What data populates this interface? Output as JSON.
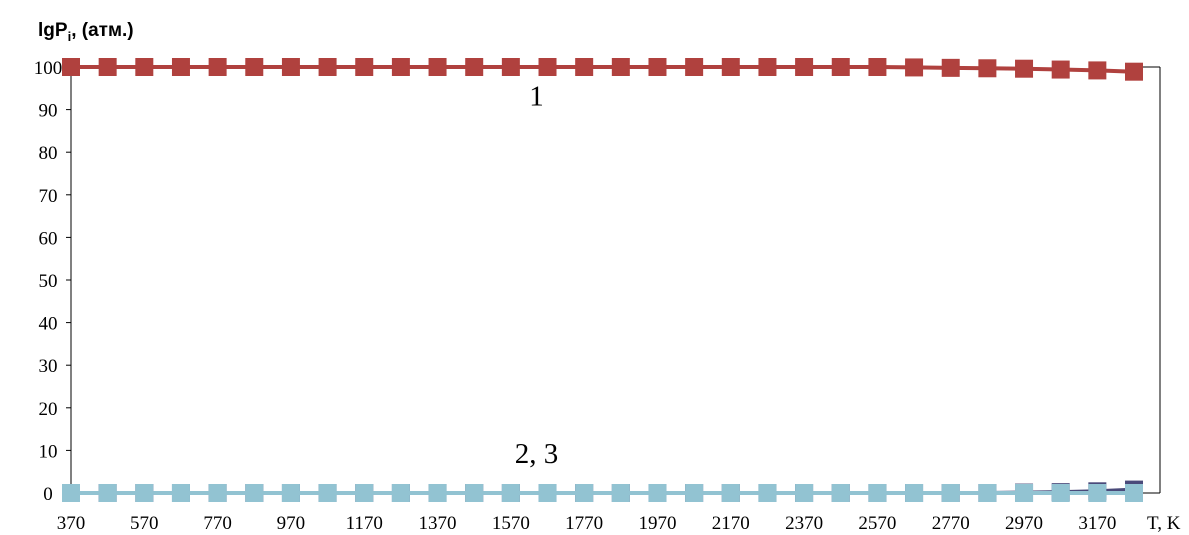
{
  "chart_data": {
    "type": "line",
    "ylabel_main": "lgP",
    "ylabel_sub": "i",
    "ylabel_rest": ", (атм.)",
    "xlabel": "T, K",
    "x_tick_labels": [
      "370",
      "570",
      "770",
      "970",
      "1170",
      "1370",
      "1570",
      "1770",
      "1970",
      "2170",
      "2370",
      "2570",
      "2770",
      "2970",
      "3170"
    ],
    "y_ticks": [
      0,
      10,
      20,
      30,
      40,
      50,
      60,
      70,
      80,
      90,
      100
    ],
    "ylim": [
      0,
      100
    ],
    "x": [
      370,
      470,
      570,
      670,
      770,
      870,
      970,
      1070,
      1170,
      1270,
      1370,
      1470,
      1570,
      1670,
      1770,
      1870,
      1970,
      2070,
      2170,
      2270,
      2370,
      2470,
      2570,
      2670,
      2770,
      2870,
      2970,
      3070,
      3170,
      3270
    ],
    "series": [
      {
        "id": "1",
        "color": "#b0413e",
        "values": [
          100,
          100,
          100,
          100,
          100,
          100,
          100,
          100,
          100,
          100,
          100,
          100,
          100,
          100,
          100,
          100,
          100,
          100,
          100,
          100,
          100,
          100,
          100,
          99.9,
          99.8,
          99.7,
          99.6,
          99.4,
          99.2,
          98.9
        ]
      },
      {
        "id": "2",
        "color": "#4a4a7a",
        "values": [
          0,
          0,
          0,
          0,
          0,
          0,
          0,
          0,
          0,
          0,
          0,
          0,
          0,
          0,
          0,
          0,
          0,
          0,
          0,
          0,
          0,
          0,
          0,
          0,
          0,
          0,
          0.1,
          0.2,
          0.4,
          0.8
        ]
      },
      {
        "id": "3",
        "color": "#92c3d2",
        "values": [
          0,
          0,
          0,
          0,
          0,
          0,
          0,
          0,
          0,
          0,
          0,
          0,
          0,
          0,
          0,
          0,
          0,
          0,
          0,
          0,
          0,
          0,
          0,
          0,
          0,
          0,
          0,
          0,
          0,
          0
        ]
      }
    ],
    "annotations": [
      {
        "text": "1",
        "x": 1640,
        "y": 91
      },
      {
        "text": "2, 3",
        "x": 1640,
        "y": 7
      }
    ]
  }
}
